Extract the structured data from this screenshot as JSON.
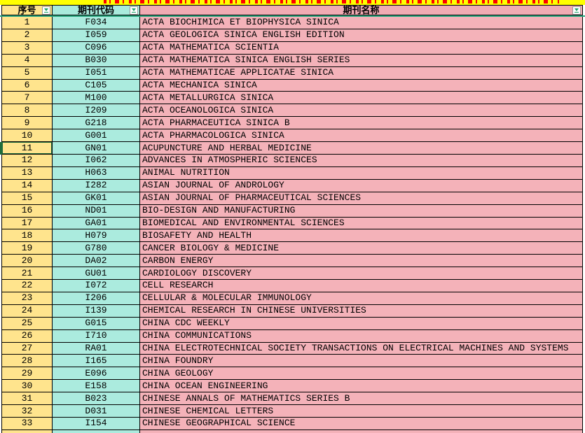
{
  "header": {
    "columns": [
      {
        "label": "序号"
      },
      {
        "label": "期刊代码"
      },
      {
        "label": "期刊名称"
      }
    ]
  },
  "table": {
    "rows": [
      {
        "no": "1",
        "code": "F034",
        "name": "ACTA BIOCHIMICA ET BIOPHYSICA SINICA"
      },
      {
        "no": "2",
        "code": "I059",
        "name": "ACTA GEOLOGICA SINICA ENGLISH EDITION"
      },
      {
        "no": "3",
        "code": "C096",
        "name": "ACTA MATHEMATICA SCIENTIA"
      },
      {
        "no": "4",
        "code": "B030",
        "name": "ACTA MATHEMATICA SINICA ENGLISH SERIES"
      },
      {
        "no": "5",
        "code": "I051",
        "name": "ACTA MATHEMATICAE APPLICATAE SINICA"
      },
      {
        "no": "6",
        "code": "C105",
        "name": "ACTA MECHANICA SINICA"
      },
      {
        "no": "7",
        "code": "M100",
        "name": "ACTA METALLURGICA SINICA"
      },
      {
        "no": "8",
        "code": "I209",
        "name": "ACTA OCEANOLOGICA SINICA"
      },
      {
        "no": "9",
        "code": "G218",
        "name": "ACTA PHARMACEUTICA SINICA B"
      },
      {
        "no": "10",
        "code": "G001",
        "name": "ACTA PHARMACOLOGICA SINICA"
      },
      {
        "no": "11",
        "code": "GN01",
        "name": "ACUPUNCTURE AND HERBAL MEDICINE"
      },
      {
        "no": "12",
        "code": "I062",
        "name": "ADVANCES IN ATMOSPHERIC SCIENCES"
      },
      {
        "no": "13",
        "code": "H063",
        "name": "ANIMAL NUTRITION"
      },
      {
        "no": "14",
        "code": "I282",
        "name": "ASIAN JOURNAL OF ANDROLOGY"
      },
      {
        "no": "15",
        "code": "GK01",
        "name": "ASIAN JOURNAL OF PHARMACEUTICAL SCIENCES"
      },
      {
        "no": "16",
        "code": "ND01",
        "name": "BIO-DESIGN AND MANUFACTURING"
      },
      {
        "no": "17",
        "code": "GA01",
        "name": "BIOMEDICAL AND ENVIRONMENTAL SCIENCES"
      },
      {
        "no": "18",
        "code": "H079",
        "name": "BIOSAFETY AND HEALTH"
      },
      {
        "no": "19",
        "code": "G780",
        "name": "CANCER BIOLOGY & MEDICINE"
      },
      {
        "no": "20",
        "code": "DA02",
        "name": "CARBON ENERGY"
      },
      {
        "no": "21",
        "code": "GU01",
        "name": "CARDIOLOGY DISCOVERY"
      },
      {
        "no": "22",
        "code": "I072",
        "name": "CELL RESEARCH"
      },
      {
        "no": "23",
        "code": "I206",
        "name": "CELLULAR & MOLECULAR IMMUNOLOGY"
      },
      {
        "no": "24",
        "code": "I139",
        "name": "CHEMICAL RESEARCH IN CHINESE UNIVERSITIES"
      },
      {
        "no": "25",
        "code": "G015",
        "name": "CHINA CDC WEEKLY"
      },
      {
        "no": "26",
        "code": "I710",
        "name": "CHINA COMMUNICATIONS"
      },
      {
        "no": "27",
        "code": "RA01",
        "name": "CHINA ELECTROTECHNICAL SOCIETY TRANSACTIONS ON ELECTRICAL MACHINES AND SYSTEMS"
      },
      {
        "no": "28",
        "code": "I165",
        "name": "CHINA FOUNDRY"
      },
      {
        "no": "29",
        "code": "E096",
        "name": "CHINA GEOLOGY"
      },
      {
        "no": "30",
        "code": "E158",
        "name": "CHINA OCEAN ENGINEERING"
      },
      {
        "no": "31",
        "code": "B023",
        "name": "CHINESE ANNALS OF MATHEMATICS SERIES B"
      },
      {
        "no": "32",
        "code": "D031",
        "name": "CHINESE CHEMICAL LETTERS"
      },
      {
        "no": "33",
        "code": "I154",
        "name": "CHINESE GEOGRAPHICAL SCIENCE"
      }
    ]
  },
  "selection": {
    "row_no": "11",
    "column": "序号"
  },
  "colors": {
    "title_strip_bg": "#FFFF00",
    "title_strip_text": "#FF0000",
    "serial_column_bg": "#FFE48D",
    "code_column_bg": "#ABEBDE",
    "name_column_bg": "#F4B2B9",
    "grid_border": "#000000",
    "freeze_line_green": "#2AA77F",
    "filter_arrow_green": "#1FA36B",
    "selection_green": "#1E6C3C"
  }
}
